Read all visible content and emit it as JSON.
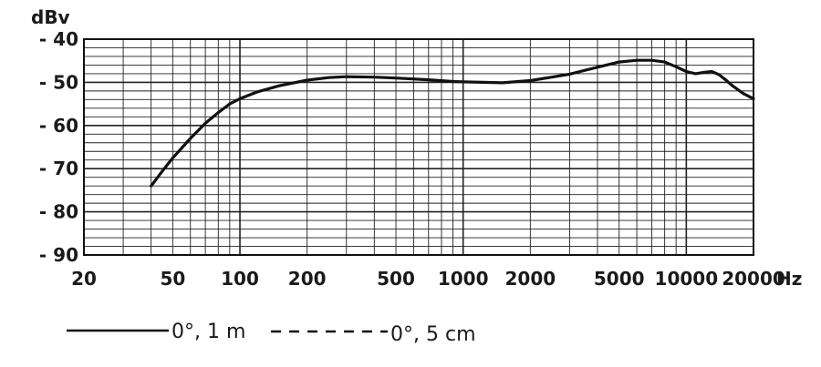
{
  "chart_data": {
    "type": "line",
    "x_scale": "log",
    "ylabel": "dBv",
    "xunit": "Hz",
    "xlim": [
      20,
      20000
    ],
    "ylim": [
      -90,
      -40
    ],
    "grid": true,
    "y_ticks": [
      {
        "value": -40,
        "label": "- 40"
      },
      {
        "value": -50,
        "label": "- 50"
      },
      {
        "value": -60,
        "label": "- 60"
      },
      {
        "value": -70,
        "label": "- 70"
      },
      {
        "value": -80,
        "label": "- 80"
      },
      {
        "value": -90,
        "label": "- 90"
      }
    ],
    "x_ticks": [
      {
        "value": 20,
        "label": "20"
      },
      {
        "value": 50,
        "label": "50"
      },
      {
        "value": 100,
        "label": "100"
      },
      {
        "value": 200,
        "label": "200"
      },
      {
        "value": 500,
        "label": "500"
      },
      {
        "value": 1000,
        "label": "1000"
      },
      {
        "value": 2000,
        "label": "2000"
      },
      {
        "value": 5000,
        "label": "5000"
      },
      {
        "value": 10000,
        "label": "10000"
      },
      {
        "value": 20000,
        "label": "20000"
      }
    ],
    "series": [
      {
        "name": "0°, 1 m",
        "style": "solid",
        "points": [
          [
            40,
            -74
          ],
          [
            45,
            -70.5
          ],
          [
            50,
            -67.5
          ],
          [
            60,
            -63
          ],
          [
            70,
            -59.5
          ],
          [
            80,
            -57
          ],
          [
            90,
            -55
          ],
          [
            100,
            -53.8
          ],
          [
            120,
            -52.2
          ],
          [
            150,
            -50.8
          ],
          [
            200,
            -49.5
          ],
          [
            250,
            -48.9
          ],
          [
            300,
            -48.7
          ],
          [
            400,
            -48.8
          ],
          [
            500,
            -49
          ],
          [
            700,
            -49.4
          ],
          [
            900,
            -49.8
          ],
          [
            1000,
            -49.9
          ],
          [
            1500,
            -50.1
          ],
          [
            2000,
            -49.6
          ],
          [
            2500,
            -48.8
          ],
          [
            3000,
            -48.1
          ],
          [
            4000,
            -46.5
          ],
          [
            5000,
            -45.3
          ],
          [
            6000,
            -44.9
          ],
          [
            7000,
            -44.9
          ],
          [
            8000,
            -45.3
          ],
          [
            9000,
            -46.4
          ],
          [
            10000,
            -47.5
          ],
          [
            11000,
            -48
          ],
          [
            12000,
            -47.7
          ],
          [
            13000,
            -47.5
          ],
          [
            14000,
            -48.2
          ],
          [
            15000,
            -49.4
          ],
          [
            16000,
            -50.7
          ],
          [
            18000,
            -52.6
          ],
          [
            20000,
            -53.8
          ]
        ]
      }
    ],
    "legend": [
      {
        "label": "0°, 1 m",
        "style": "solid"
      },
      {
        "label": "0°, 5 cm",
        "style": "dashed"
      }
    ]
  }
}
